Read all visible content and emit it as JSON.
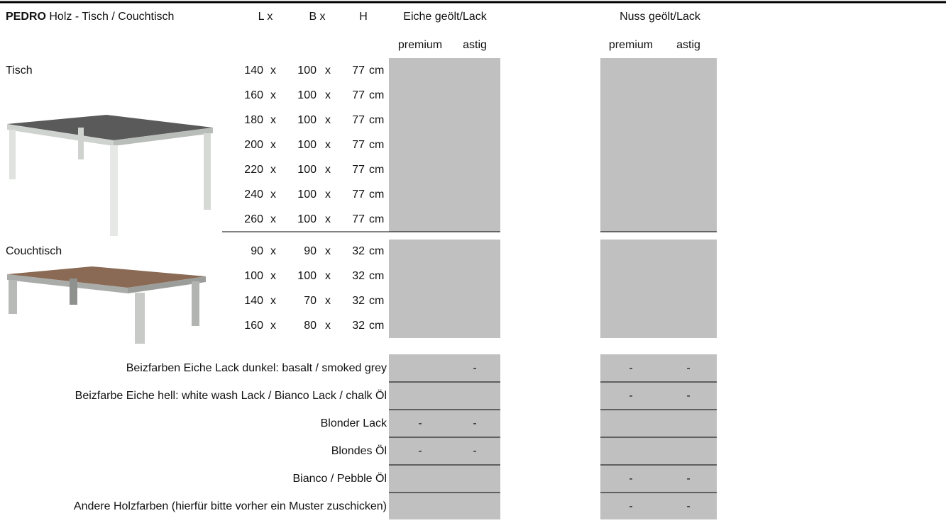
{
  "header": {
    "brand": "PEDRO",
    "title": "Holz - Tisch / Couchtisch"
  },
  "columns": {
    "length": "L x",
    "width": "B x",
    "height": "H",
    "groups": [
      {
        "name": "Eiche geölt/Lack",
        "sub": [
          "premium",
          "astig"
        ]
      },
      {
        "name": "Nuss geölt/Lack",
        "sub": [
          "premium",
          "astig"
        ]
      }
    ]
  },
  "times": "x",
  "unit": "cm",
  "sections": [
    {
      "label": "Tisch",
      "rows": [
        [
          140,
          100,
          77
        ],
        [
          160,
          100,
          77
        ],
        [
          180,
          100,
          77
        ],
        [
          200,
          100,
          77
        ],
        [
          220,
          100,
          77
        ],
        [
          240,
          100,
          77
        ],
        [
          260,
          100,
          77
        ]
      ]
    },
    {
      "label": "Couchtisch",
      "rows": [
        [
          90,
          90,
          32
        ],
        [
          100,
          100,
          32
        ],
        [
          140,
          70,
          32
        ],
        [
          160,
          80,
          32
        ]
      ]
    }
  ],
  "finishes": [
    {
      "label": "Beizfarben Eiche Lack dunkel: basalt / smoked grey",
      "marks": [
        null,
        "-",
        "-",
        "-"
      ]
    },
    {
      "label": "Beizfarbe Eiche hell: white wash Lack / Bianco Lack / chalk Öl",
      "marks": [
        null,
        null,
        "-",
        "-"
      ]
    },
    {
      "label": "Blonder Lack",
      "marks": [
        "-",
        "-",
        null,
        null
      ]
    },
    {
      "label": "Blondes Öl",
      "marks": [
        "-",
        "-",
        null,
        null
      ]
    },
    {
      "label": "Bianco / Pebble Öl",
      "marks": [
        null,
        null,
        "-",
        "-"
      ]
    },
    {
      "label": "Andere Holzfarben (hierfür bitte vorher ein Muster zuschicken)",
      "marks": [
        null,
        null,
        "-",
        "-"
      ]
    }
  ]
}
